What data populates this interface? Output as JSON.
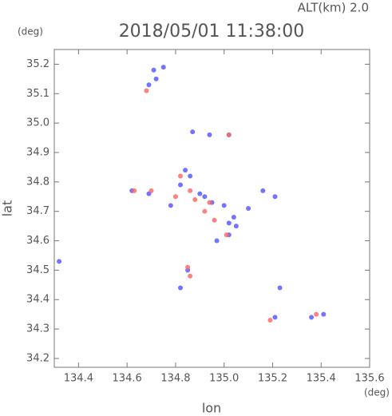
{
  "chart_data": {
    "type": "scatter",
    "title": "2018/05/01 11:38:00",
    "subtitle": "ALT(km) 2.0",
    "x_label": "lon",
    "y_label": "lat",
    "x_unit": "(deg)",
    "y_unit": "(deg)",
    "xlim": [
      134.3,
      135.6
    ],
    "ylim": [
      34.17,
      35.25
    ],
    "xticks": [
      134.4,
      134.6,
      134.8,
      {
        "value": 135.0,
        "label": "135.0"
      },
      135.2,
      135.4,
      135.6
    ],
    "yticks": [
      34.2,
      34.3,
      34.4,
      34.5,
      34.6,
      34.7,
      34.8,
      34.9,
      {
        "value": 35.0,
        "label": "35.0"
      },
      35.1,
      35.2
    ],
    "series": [
      {
        "color": "#5a5aff",
        "x": [
          134.75,
          134.71,
          134.69,
          134.72,
          134.87,
          134.94,
          135.02,
          134.84,
          134.86,
          134.82,
          134.9,
          134.95,
          135.0,
          135.02,
          135.05,
          134.97,
          135.02,
          134.62,
          134.69,
          135.21,
          135.16,
          134.85,
          134.82,
          135.21,
          135.41,
          135.36,
          135.23,
          134.32,
          134.92,
          135.1,
          134.78,
          135.04
        ],
        "values": [
          35.19,
          35.18,
          35.13,
          35.15,
          34.97,
          34.96,
          34.96,
          34.84,
          34.82,
          34.79,
          34.76,
          34.73,
          34.72,
          34.66,
          34.65,
          34.6,
          34.62,
          34.77,
          34.76,
          34.75,
          34.77,
          34.5,
          34.44,
          34.34,
          34.35,
          34.34,
          34.44,
          34.53,
          34.75,
          34.71,
          34.72,
          34.68
        ]
      },
      {
        "color": "#ff6a6a",
        "x": [
          134.68,
          134.63,
          134.7,
          134.82,
          134.86,
          134.92,
          134.96,
          135.01,
          134.94,
          134.86,
          134.85,
          135.19,
          135.38,
          135.02,
          134.8,
          134.88
        ],
        "values": [
          35.11,
          34.77,
          34.77,
          34.82,
          34.77,
          34.7,
          34.67,
          34.62,
          34.73,
          34.48,
          34.51,
          34.33,
          34.35,
          34.96,
          34.75,
          34.74
        ]
      }
    ]
  }
}
